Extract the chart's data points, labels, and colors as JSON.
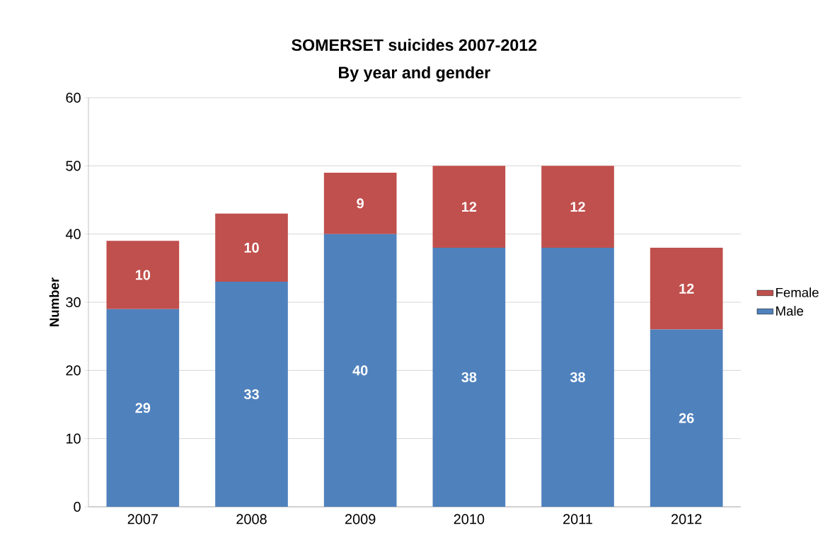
{
  "chart_data": {
    "type": "bar",
    "title": "SOMERSET suicides 2007-2012",
    "subtitle": "By year and gender",
    "ylabel": "Number",
    "categories": [
      "2007",
      "2008",
      "2009",
      "2010",
      "2011",
      "2012"
    ],
    "series": [
      {
        "name": "Male",
        "color": "#4f81bd",
        "values": [
          29,
          33,
          40,
          38,
          38,
          26
        ]
      },
      {
        "name": "Female",
        "color": "#c0504d",
        "values": [
          10,
          10,
          9,
          12,
          12,
          12
        ]
      }
    ],
    "stacked": true,
    "data_labels": true,
    "ylim": [
      0,
      60
    ],
    "yticks": [
      0,
      10,
      20,
      30,
      40,
      50,
      60
    ],
    "grid": "y",
    "legend": "right"
  }
}
